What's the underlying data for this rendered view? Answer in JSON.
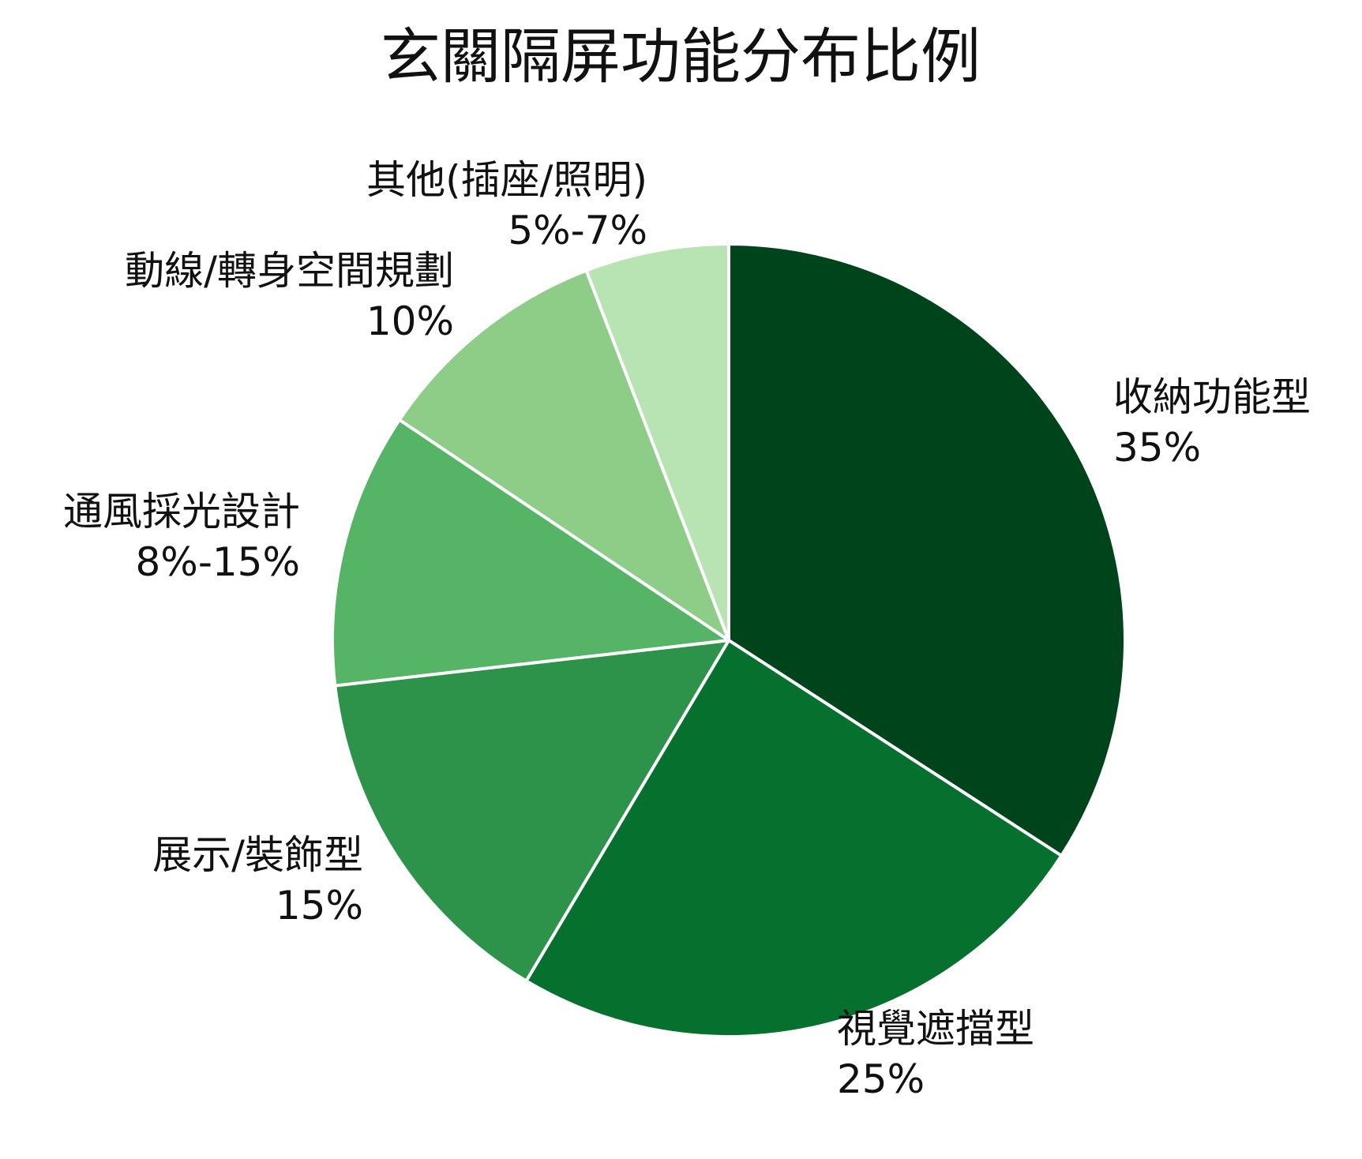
{
  "chart_data": {
    "type": "pie",
    "title": "玄關隔屏功能分布比例",
    "start_angle_deg": 90,
    "direction": "clockwise",
    "slices": [
      {
        "name": "收納功能型",
        "value_label": "35%",
        "value": 35,
        "color": "#00441b"
      },
      {
        "name": "視覺遮擋型",
        "value_label": "25%",
        "value": 25,
        "color": "#06702f"
      },
      {
        "name": "展示/裝飾型",
        "value_label": "15%",
        "value": 15,
        "color": "#2d934b"
      },
      {
        "name": "通風採光設計",
        "value_label": "8%-15%",
        "value": 11.5,
        "color": "#56b467"
      },
      {
        "name": "動線/轉身空間規劃",
        "value_label": "10%",
        "value": 10,
        "color": "#8dcd88"
      },
      {
        "name": "其他(插座/照明)",
        "value_label": "5%-7%",
        "value": 6,
        "color": "#b8e3b2"
      }
    ],
    "slice_border_color": "#ffffff"
  }
}
